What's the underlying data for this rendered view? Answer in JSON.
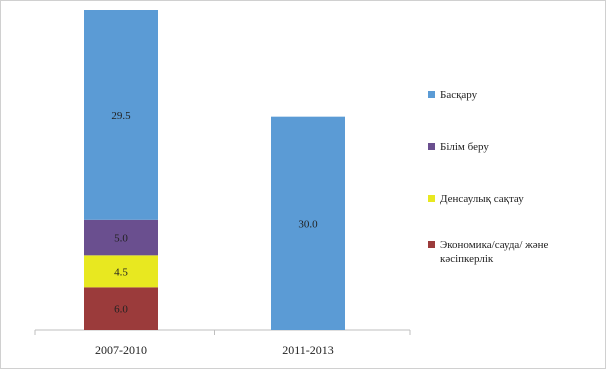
{
  "chart_data": {
    "type": "bar",
    "stacked": true,
    "categories": [
      "2007-2010",
      "2011-2013"
    ],
    "series": [
      {
        "name": "Экономика/сауда/ және кәсіпкерлік",
        "color": "#9b3b3b",
        "values": [
          6.0,
          0
        ]
      },
      {
        "name": "Денсаулық сақтау",
        "color": "#e8e820",
        "values": [
          4.5,
          0
        ]
      },
      {
        "name": "Білім беру",
        "color": "#6a4f8f",
        "values": [
          5.0,
          0
        ]
      },
      {
        "name": "Басқару",
        "color": "#5b9bd5",
        "values": [
          29.5,
          30.0
        ]
      }
    ],
    "data_labels": [
      "6.0",
      "4.5",
      "5.0",
      "29.5",
      "30.0"
    ],
    "legend": [
      {
        "label": "Басқару",
        "color": "#5b9bd5"
      },
      {
        "label": "Білім беру",
        "color": "#6a4f8f"
      },
      {
        "label": "Денсаулық сақтау",
        "color": "#e8e820"
      },
      {
        "label": "Экономика/сауда/ және кәсіпкерлік",
        "color": "#9b3b3b"
      }
    ],
    "legend_position": "right",
    "ylim": [
      0,
      45
    ],
    "grid": false,
    "title": "",
    "xlabel": "",
    "ylabel": ""
  }
}
